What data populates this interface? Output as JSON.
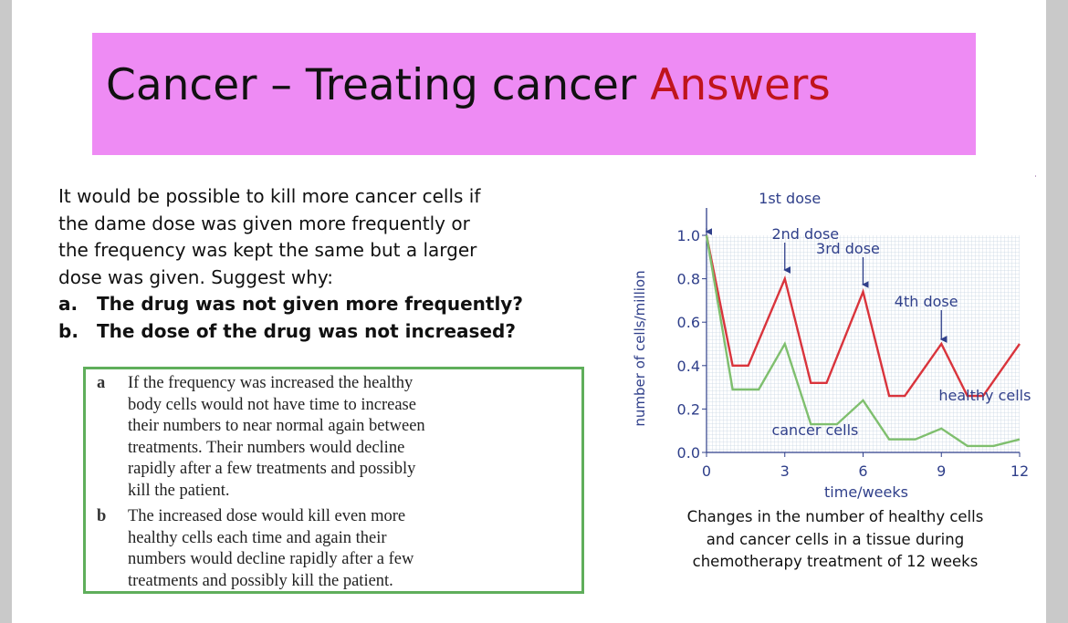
{
  "slide": {
    "title_main": "Cancer – Treating cancer ",
    "title_accent": "Answers",
    "question": {
      "text_lines": [
        "It would be possible to kill more cancer cells if",
        "the dame dose was given more frequently or",
        "the frequency was kept the same but a larger",
        "dose was given. Suggest why:"
      ],
      "items": [
        {
          "letter": "a.",
          "text": "The drug was not given more frequently?"
        },
        {
          "letter": "b.",
          "text": "The dose of the drug was not increased?"
        }
      ]
    },
    "answers": [
      {
        "letter": "a",
        "lines": [
          "If the frequency was increased the healthy",
          "body cells would not have time to increase",
          "their numbers to near normal again between",
          "treatments. Their numbers would decline",
          "rapidly after a few treatments and possibly",
          "kill the patient."
        ]
      },
      {
        "letter": "b",
        "lines": [
          "The increased dose would kill even more",
          "healthy cells each time and again their",
          "numbers would decline rapidly after a few",
          "treatments and possibly kill the patient."
        ]
      }
    ],
    "caption_lines": [
      "Changes in the number of healthy cells",
      "and cancer cells in a tissue during",
      "chemotherapy treatment of 12 weeks"
    ]
  },
  "chart_data": {
    "type": "line",
    "xlabel": "time/weeks",
    "ylabel": "number of cells/million",
    "xlim": [
      0,
      12
    ],
    "ylim": [
      0,
      1.0
    ],
    "x_ticks": [
      0,
      3,
      6,
      9,
      12
    ],
    "y_ticks": [
      0.0,
      0.2,
      0.4,
      0.6,
      0.8,
      1.0
    ],
    "grid": true,
    "series": [
      {
        "name": "healthy cells",
        "color": "#d9343c",
        "points": [
          [
            0,
            1.0
          ],
          [
            1,
            0.4
          ],
          [
            1.6,
            0.4
          ],
          [
            3,
            0.8
          ],
          [
            4,
            0.32
          ],
          [
            4.6,
            0.32
          ],
          [
            6,
            0.74
          ],
          [
            7,
            0.26
          ],
          [
            7.6,
            0.26
          ],
          [
            9,
            0.5
          ],
          [
            10,
            0.26
          ],
          [
            10.6,
            0.26
          ],
          [
            12,
            0.5
          ]
        ]
      },
      {
        "name": "cancer cells",
        "color": "#7fbf6e",
        "points": [
          [
            0,
            1.0
          ],
          [
            1,
            0.29
          ],
          [
            2,
            0.29
          ],
          [
            3,
            0.5
          ],
          [
            4,
            0.13
          ],
          [
            5,
            0.13
          ],
          [
            6,
            0.24
          ],
          [
            7,
            0.06
          ],
          [
            8,
            0.06
          ],
          [
            9,
            0.11
          ],
          [
            10,
            0.03
          ],
          [
            11,
            0.03
          ],
          [
            12,
            0.06
          ]
        ]
      }
    ],
    "annotations": [
      {
        "label": "1st dose",
        "x": 0
      },
      {
        "label": "2nd dose",
        "x": 3
      },
      {
        "label": "3rd dose",
        "x": 6
      },
      {
        "label": "4th dose",
        "x": 9
      }
    ]
  }
}
